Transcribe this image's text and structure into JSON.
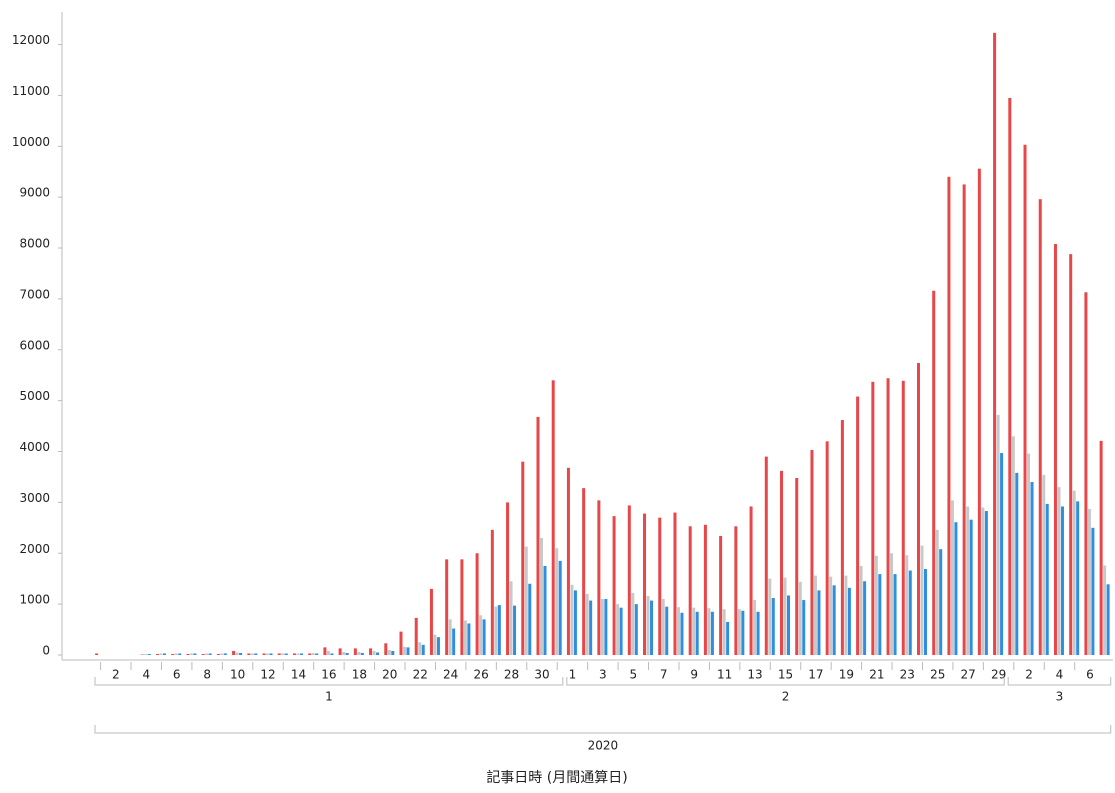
{
  "chart_data": {
    "type": "bar",
    "x_label": "記事日時 (月間通算日)",
    "year": "2020",
    "months": [
      "1",
      "2",
      "3"
    ],
    "categories": [
      null,
      "2",
      null,
      "4",
      null,
      "6",
      null,
      "8",
      null,
      "10",
      null,
      "12",
      null,
      "14",
      null,
      "16",
      null,
      "18",
      null,
      "20",
      null,
      "22",
      null,
      "24",
      null,
      "26",
      null,
      "28",
      null,
      "30",
      null,
      "1",
      null,
      "3",
      null,
      "5",
      null,
      "7",
      null,
      "9",
      null,
      "11",
      null,
      "13",
      null,
      "15",
      null,
      "17",
      null,
      "19",
      null,
      "21",
      null,
      "23",
      null,
      "25",
      null,
      "27",
      null,
      "29",
      null,
      "2",
      null,
      "4",
      null,
      "6",
      null
    ],
    "series": [
      {
        "color": "#e8474a",
        "values": [
          30,
          0,
          0,
          10,
          20,
          20,
          20,
          20,
          20,
          80,
          30,
          30,
          30,
          30,
          30,
          150,
          130,
          130,
          130,
          230,
          460,
          730,
          1300,
          1880,
          1880,
          2000,
          2460,
          3000,
          3800,
          4680,
          5400,
          3680,
          3280,
          3040,
          2730,
          2940,
          2780,
          2700,
          2800,
          2530,
          2560,
          2340,
          2530,
          2920,
          3900,
          3620,
          3480,
          4030,
          4200,
          4620,
          5080,
          5370,
          5440,
          5390,
          5740,
          7160,
          9400,
          9250,
          9560,
          12230,
          10950,
          10030,
          8960,
          8080,
          7880,
          7130,
          4210
        ]
      },
      {
        "color": "#c8c8c8",
        "values": [
          0,
          0,
          0,
          20,
          30,
          30,
          30,
          30,
          30,
          50,
          30,
          30,
          30,
          30,
          40,
          80,
          60,
          60,
          80,
          100,
          160,
          250,
          400,
          700,
          680,
          780,
          950,
          1450,
          2130,
          2300,
          2100,
          1380,
          1200,
          1100,
          1000,
          1220,
          1160,
          1100,
          940,
          930,
          920,
          900,
          900,
          1080,
          1500,
          1520,
          1440,
          1560,
          1540,
          1560,
          1750,
          1950,
          2000,
          1960,
          2150,
          2460,
          3040,
          2920,
          2900,
          4720,
          4300,
          3960,
          3540,
          3300,
          3230,
          2870,
          1760
        ]
      },
      {
        "color": "#2e8fe0",
        "values": [
          0,
          0,
          0,
          20,
          30,
          30,
          30,
          30,
          30,
          40,
          30,
          30,
          30,
          30,
          30,
          30,
          40,
          40,
          50,
          80,
          150,
          200,
          350,
          520,
          620,
          700,
          980,
          970,
          1400,
          1750,
          1850,
          1270,
          1070,
          1100,
          930,
          1000,
          1070,
          950,
          830,
          850,
          850,
          650,
          870,
          850,
          1120,
          1170,
          1080,
          1270,
          1370,
          1320,
          1450,
          1590,
          1590,
          1660,
          1690,
          2080,
          2610,
          2660,
          2830,
          3970,
          3580,
          3400,
          2970,
          2920,
          3020,
          2500,
          1390
        ]
      }
    ],
    "ylim": [
      0,
      12600
    ],
    "yticks": [
      0,
      1000,
      2000,
      3000,
      4000,
      5000,
      6000,
      7000,
      8000,
      9000,
      10000,
      11000,
      12000
    ],
    "grid": false
  }
}
